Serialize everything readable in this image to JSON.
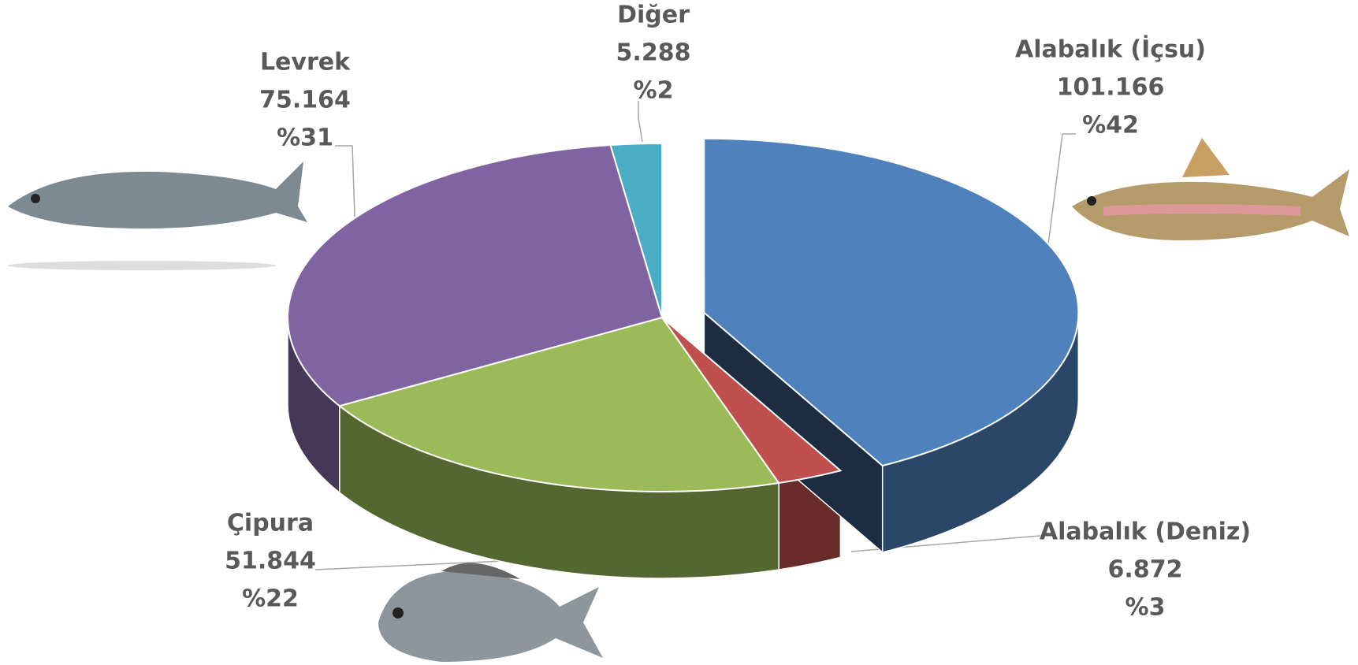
{
  "chart_data": {
    "type": "pie3d",
    "categories": [
      "Alabalık (İçsu)",
      "Alabalık (Deniz)",
      "Çipura",
      "Levrek",
      "Diğer"
    ],
    "values": [
      101166,
      6872,
      51844,
      75164,
      5288
    ],
    "value_labels": [
      "101.166",
      "6.872",
      "51.844",
      "75.164",
      "5.288"
    ],
    "percentages": [
      42,
      3,
      22,
      31,
      2
    ],
    "percentage_labels": [
      "%42",
      "%3",
      "%22",
      "%31",
      "%2"
    ],
    "colors": [
      "#4f81bd",
      "#c0504d",
      "#9bbb59",
      "#8064a2",
      "#4bacc6"
    ],
    "exploded": [
      "Alabalık (İçsu)"
    ]
  }
}
